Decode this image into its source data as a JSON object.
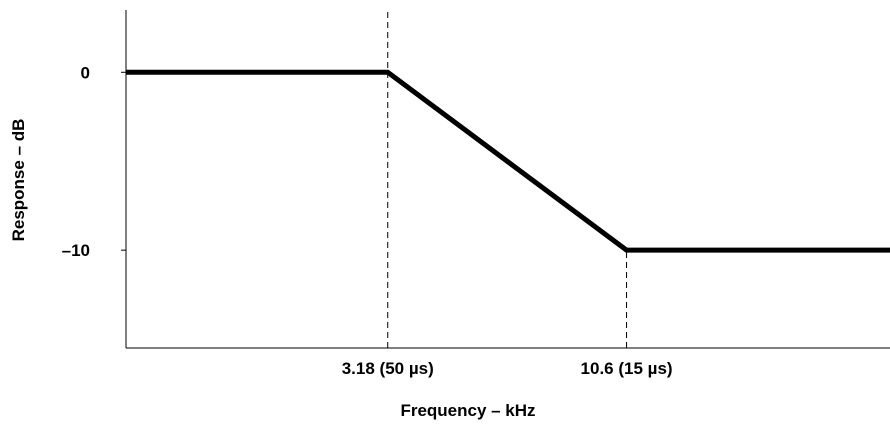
{
  "chart_data": {
    "type": "line",
    "title": "",
    "xlabel": "Frequency – kHz",
    "ylabel": "Response – dB",
    "x_scale": "log",
    "xlim": [
      0.85,
      40
    ],
    "ylim": [
      -15.5,
      3.5
    ],
    "grid": false,
    "legend": "none",
    "y_ticks": [
      {
        "value": 0,
        "label": "0"
      },
      {
        "value": -10,
        "label": "–10"
      }
    ],
    "x_ticks": [
      {
        "value": 3.18,
        "label": "3.18 (50 µs)"
      },
      {
        "value": 10.6,
        "label": "10.6 (15 µs)"
      }
    ],
    "series": [
      {
        "x": [
          0.85,
          3.18,
          10.6,
          40
        ],
        "y": [
          0,
          0,
          -10,
          -10
        ]
      }
    ],
    "reference_lines": [
      {
        "x": 3.18,
        "y_from": -15.5,
        "y_to": 3.5,
        "style": "dashed"
      },
      {
        "x": 10.6,
        "y_from": -15.5,
        "y_to": -10,
        "style": "dashed"
      }
    ],
    "colors": {
      "line": "#000000",
      "axes": "#000000",
      "background": "#ffffff"
    }
  }
}
